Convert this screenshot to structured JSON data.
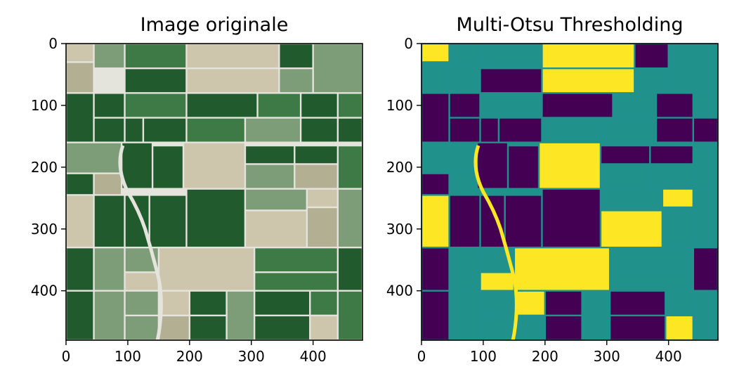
{
  "chart_data": [
    {
      "type": "heatmap",
      "title": "Image originale",
      "image": "satellite photo of agricultural fields",
      "xlim": [
        0,
        480
      ],
      "ylim": [
        480,
        0
      ],
      "xticks": [
        0,
        100,
        200,
        300,
        400
      ],
      "yticks": [
        0,
        100,
        200,
        300,
        400
      ],
      "palette": {
        "dark_green": "#215a2c",
        "mid_green": "#3d7a45",
        "light_green": "#7d9c78",
        "pale": "#cdc6ad",
        "beige": "#b3af92",
        "road": "#e4e4dc"
      }
    },
    {
      "type": "heatmap",
      "title": "Multi-Otsu Thresholding",
      "colormap": "viridis",
      "classes": 3,
      "class_colors": [
        "#440154",
        "#21918c",
        "#fde725"
      ],
      "xlim": [
        0,
        480
      ],
      "ylim": [
        480,
        0
      ],
      "xticks": [
        0,
        100,
        200,
        300,
        400
      ],
      "yticks": [
        0,
        100,
        200,
        300,
        400
      ]
    }
  ]
}
